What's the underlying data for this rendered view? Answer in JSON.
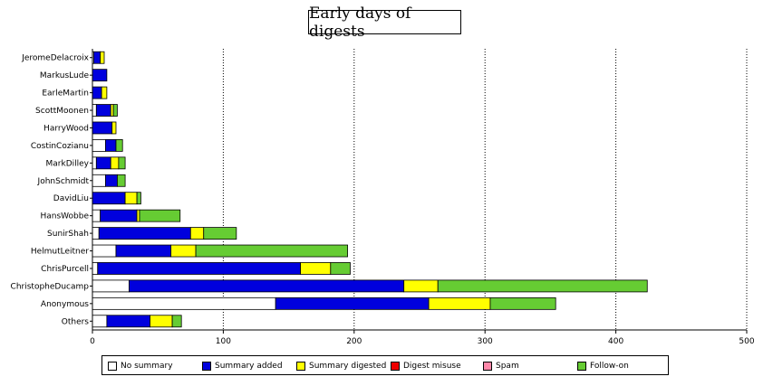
{
  "chart_data": {
    "type": "bar",
    "orientation": "horizontal",
    "stacked": true,
    "title": "Early days of digests",
    "xlabel": "",
    "ylabel": "",
    "xlim": [
      0,
      500
    ],
    "x_ticks": [
      0,
      100,
      200,
      300,
      400,
      500
    ],
    "grid": "vertical dotted",
    "legend_position": "bottom",
    "categories": [
      "JeromeDelacroix",
      "MarkusLude",
      "EarleMartin",
      "ScottMoonen",
      "HarryWood",
      "CostinCozianu",
      "MarkDilley",
      "JohnSchmidt",
      "DavidLiu",
      "HansWobbe",
      "SunirShah",
      "HelmutLeitner",
      "ChrisPurcell",
      "ChristopheDucamp",
      "Anonymous",
      "Others"
    ],
    "series": [
      {
        "name": "No summary",
        "color": "#ffffff",
        "values": [
          1,
          0,
          0,
          3,
          0,
          10,
          3,
          10,
          0,
          6,
          5,
          18,
          4,
          28,
          140,
          11
        ]
      },
      {
        "name": "Summary added",
        "color": "#0000dd",
        "values": [
          5,
          11,
          7,
          11,
          15,
          8,
          11,
          9,
          25,
          28,
          70,
          42,
          155,
          210,
          117,
          33
        ]
      },
      {
        "name": "Summary digested",
        "color": "#ffff00",
        "values": [
          3,
          0,
          4,
          2,
          3,
          0,
          6,
          0,
          9,
          2,
          10,
          19,
          23,
          26,
          47,
          17
        ]
      },
      {
        "name": "Digest misuse",
        "color": "#ee0000",
        "values": [
          0,
          0,
          0,
          0,
          0,
          0,
          0,
          0,
          0,
          0,
          0,
          0,
          0,
          0,
          0,
          0
        ]
      },
      {
        "name": "Spam",
        "color": "#ff88aa",
        "values": [
          0,
          0,
          0,
          0,
          0,
          0,
          0,
          0,
          0,
          0,
          0,
          0,
          0,
          0,
          0,
          0
        ]
      },
      {
        "name": "Follow-on",
        "color": "#66cc33",
        "values": [
          0,
          0,
          0,
          3,
          0,
          5,
          5,
          6,
          3,
          31,
          25,
          116,
          15,
          160,
          50,
          7
        ]
      }
    ]
  }
}
